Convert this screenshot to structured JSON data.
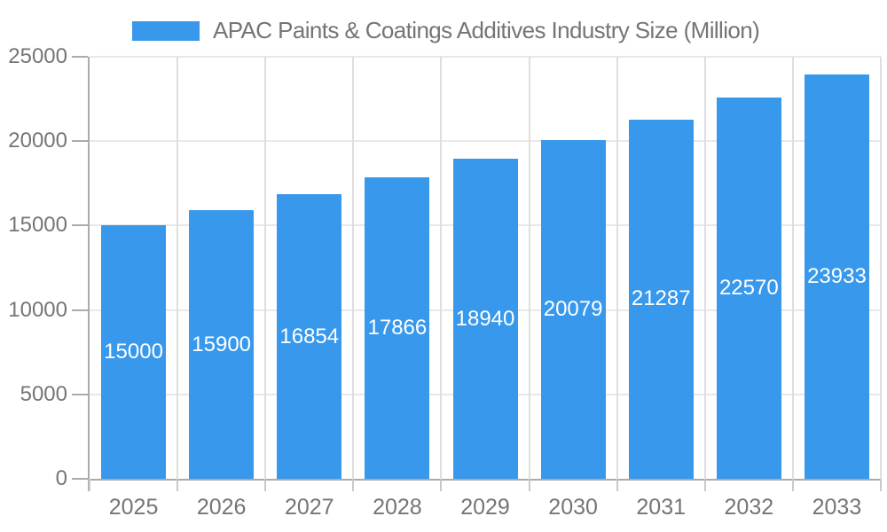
{
  "chart_data": {
    "type": "bar",
    "title": "APAC Paints & Coatings Additives Industry Size (Million)",
    "legend": {
      "label": "APAC Paints & Coatings Additives Industry Size (Million)",
      "position": "top"
    },
    "categories": [
      "2025",
      "2026",
      "2027",
      "2028",
      "2029",
      "2030",
      "2031",
      "2032",
      "2033"
    ],
    "values": [
      15000,
      15900,
      16854,
      17866,
      18940,
      20079,
      21287,
      22570,
      23933
    ],
    "xlabel": "",
    "ylabel": "",
    "ylim": [
      0,
      25000
    ],
    "yticks": [
      0,
      5000,
      10000,
      15000,
      20000,
      25000
    ],
    "grid": true,
    "value_labels_shown": true,
    "colors": {
      "bar": "#3898EC",
      "value_label": "#FFFFFF",
      "axis_text": "#757575",
      "gridline_h": "#E8E8E8",
      "gridline_v": "#DEDEDE",
      "axis_line": "#ABABAB"
    }
  }
}
